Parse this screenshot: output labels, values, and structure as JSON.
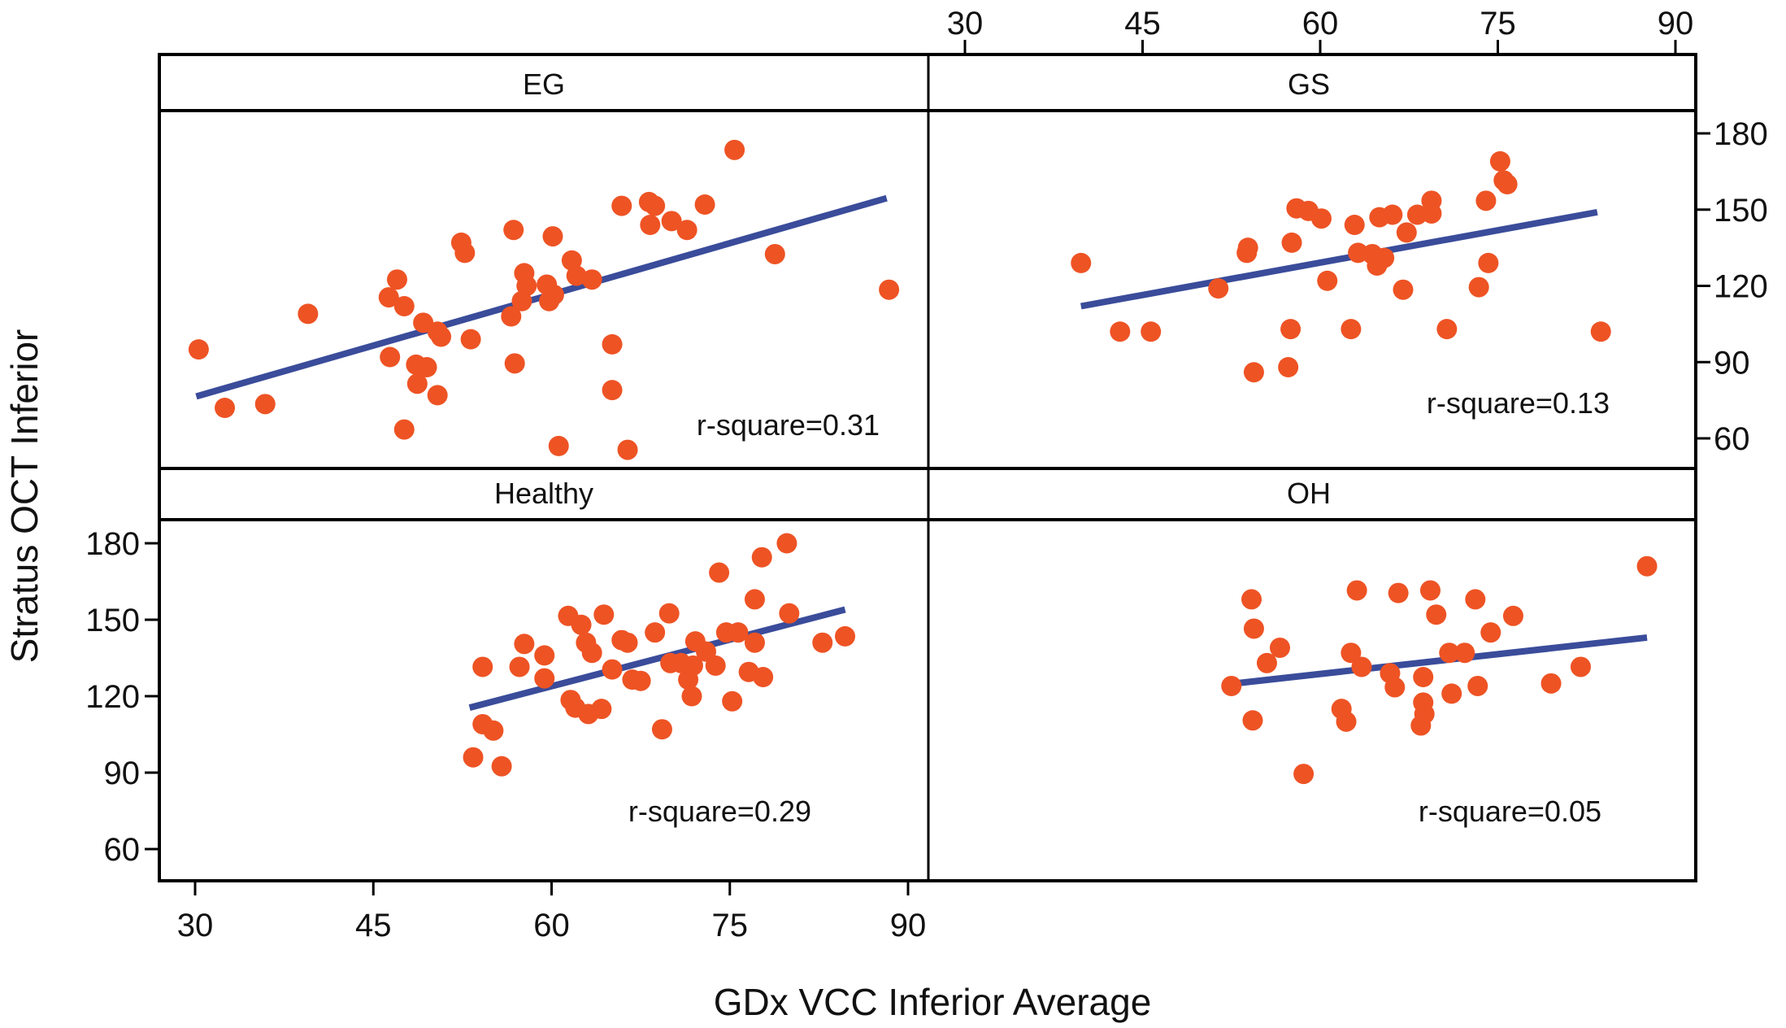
{
  "chart_data": {
    "type": "scatter",
    "layout": "2x2 facet grid",
    "xlabel": "GDx VCC Inferior Average",
    "ylabel": "Stratus OCT Inferior",
    "xlim": [
      30,
      90
    ],
    "ylim": [
      60,
      180
    ],
    "xticks": [
      30,
      45,
      60,
      75,
      90
    ],
    "yticks": [
      60,
      90,
      120,
      150,
      180
    ],
    "grid": false,
    "legend": "none",
    "colors": {
      "points": "#EE5324",
      "fit_line": "#3A4C9A",
      "frame": "#000000"
    },
    "panels": [
      {
        "name": "EG",
        "r_square_label": "r-square=0.31",
        "fit_line": {
          "x": [
            30.1,
            88.2
          ],
          "y": [
            76.5,
            154.5
          ]
        },
        "points": [
          [
            30.3,
            95
          ],
          [
            32.5,
            72
          ],
          [
            35.9,
            73.5
          ],
          [
            39.5,
            109
          ],
          [
            46.3,
            115.5
          ],
          [
            47,
            122.5
          ],
          [
            47.6,
            112
          ],
          [
            46.4,
            92
          ],
          [
            47.6,
            63.5
          ],
          [
            48.7,
            81.5
          ],
          [
            48.6,
            89
          ],
          [
            49.5,
            88
          ],
          [
            49.2,
            105.5
          ],
          [
            50.4,
            102
          ],
          [
            50.7,
            100
          ],
          [
            50.4,
            77
          ],
          [
            52.4,
            137
          ],
          [
            52.7,
            133
          ],
          [
            53.2,
            99
          ],
          [
            56.8,
            142
          ],
          [
            56.6,
            108
          ],
          [
            56.9,
            89.5
          ],
          [
            57.7,
            125
          ],
          [
            57.9,
            120
          ],
          [
            57.5,
            114
          ],
          [
            60.1,
            139.5
          ],
          [
            59.6,
            120.5
          ],
          [
            60.2,
            116.5
          ],
          [
            59.8,
            114
          ],
          [
            60.6,
            57
          ],
          [
            61.7,
            130
          ],
          [
            62.1,
            124
          ],
          [
            63.4,
            122.5
          ],
          [
            65.1,
            97
          ],
          [
            65.1,
            79
          ],
          [
            65.9,
            151.5
          ],
          [
            66.4,
            55.5
          ],
          [
            68.2,
            153
          ],
          [
            68.7,
            151.5
          ],
          [
            68.3,
            144
          ],
          [
            70.1,
            145.5
          ],
          [
            71.4,
            142
          ],
          [
            72.9,
            152
          ],
          [
            75.4,
            173.5
          ],
          [
            78.8,
            132.5
          ],
          [
            88.4,
            118.5
          ]
        ]
      },
      {
        "name": "GS",
        "r_square_label": "r-square=0.13",
        "fit_line": {
          "x": [
            39.8,
            83.4
          ],
          "y": [
            112,
            149
          ]
        },
        "points": [
          [
            39.8,
            129
          ],
          [
            43.1,
            102
          ],
          [
            45.7,
            102
          ],
          [
            51.4,
            119
          ],
          [
            53.8,
            133
          ],
          [
            53.9,
            135
          ],
          [
            54.4,
            86
          ],
          [
            57.3,
            88
          ],
          [
            57.6,
            137
          ],
          [
            57.5,
            103
          ],
          [
            58.0,
            150.5
          ],
          [
            59.0,
            149.5
          ],
          [
            60.1,
            146.5
          ],
          [
            60.6,
            122
          ],
          [
            62.9,
            144
          ],
          [
            62.6,
            103
          ],
          [
            63.2,
            133
          ],
          [
            64.4,
            132.5
          ],
          [
            64.8,
            128
          ],
          [
            65.4,
            131
          ],
          [
            65.0,
            147
          ],
          [
            66.1,
            148
          ],
          [
            67.0,
            118.5
          ],
          [
            67.3,
            141
          ],
          [
            68.2,
            148
          ],
          [
            69.4,
            153.5
          ],
          [
            69.4,
            148.5
          ],
          [
            70.7,
            103
          ],
          [
            73.4,
            119.5
          ],
          [
            74.2,
            129
          ],
          [
            74.0,
            153.5
          ],
          [
            75.2,
            169
          ],
          [
            75.5,
            161.5
          ],
          [
            75.8,
            160
          ],
          [
            83.7,
            102
          ]
        ]
      },
      {
        "name": "Healthy",
        "r_square_label": "r-square=0.29",
        "fit_line": {
          "x": [
            53.1,
            84.7
          ],
          "y": [
            115.5,
            154
          ]
        },
        "points": [
          [
            54.2,
            131.5
          ],
          [
            54.2,
            109
          ],
          [
            55.1,
            106.5
          ],
          [
            53.4,
            96
          ],
          [
            55.8,
            92.5
          ],
          [
            57.3,
            131.5
          ],
          [
            57.7,
            140.5
          ],
          [
            59.4,
            136
          ],
          [
            59.4,
            127
          ],
          [
            61.4,
            151.5
          ],
          [
            62.5,
            148
          ],
          [
            62.9,
            141
          ],
          [
            63.4,
            137
          ],
          [
            61.6,
            118.5
          ],
          [
            62.0,
            115.5
          ],
          [
            63.1,
            113
          ],
          [
            64.2,
            115
          ],
          [
            64.4,
            152
          ],
          [
            65.1,
            130.5
          ],
          [
            65.9,
            142
          ],
          [
            66.4,
            141
          ],
          [
            66.8,
            126.5
          ],
          [
            67.5,
            126
          ],
          [
            68.7,
            145
          ],
          [
            69.9,
            152.5
          ],
          [
            69.3,
            107
          ],
          [
            70.0,
            133
          ],
          [
            70.9,
            133
          ],
          [
            71.9,
            132
          ],
          [
            71.5,
            126.5
          ],
          [
            71.8,
            120
          ],
          [
            72.1,
            141.5
          ],
          [
            73.0,
            137.5
          ],
          [
            73.8,
            132
          ],
          [
            74.1,
            168.5
          ],
          [
            74.7,
            145
          ],
          [
            75.7,
            145
          ],
          [
            75.2,
            118
          ],
          [
            76.6,
            129.5
          ],
          [
            77.1,
            141
          ],
          [
            77.1,
            158
          ],
          [
            77.8,
            127.5
          ],
          [
            77.7,
            174.5
          ],
          [
            79.8,
            180
          ],
          [
            80.0,
            152.5
          ],
          [
            82.8,
            141
          ],
          [
            84.7,
            143.5
          ]
        ]
      },
      {
        "name": "OH",
        "r_square_label": "r-square=0.05",
        "fit_line": {
          "x": [
            52.8,
            87.6
          ],
          "y": [
            125,
            143
          ]
        },
        "points": [
          [
            52.5,
            124
          ],
          [
            54.2,
            158
          ],
          [
            54.4,
            146.5
          ],
          [
            54.3,
            110.5
          ],
          [
            55.5,
            133
          ],
          [
            56.6,
            139
          ],
          [
            58.6,
            89.5
          ],
          [
            61.8,
            115
          ],
          [
            62.2,
            110
          ],
          [
            62.6,
            137
          ],
          [
            63.5,
            131.5
          ],
          [
            63.1,
            161.5
          ],
          [
            65.9,
            129
          ],
          [
            66.3,
            123.5
          ],
          [
            66.6,
            160.5
          ],
          [
            68.7,
            127.5
          ],
          [
            68.7,
            117.5
          ],
          [
            68.8,
            113
          ],
          [
            68.5,
            108.5
          ],
          [
            69.3,
            161.5
          ],
          [
            69.8,
            152
          ],
          [
            70.9,
            137
          ],
          [
            71.1,
            121
          ],
          [
            72.2,
            137
          ],
          [
            73.1,
            158
          ],
          [
            73.3,
            124
          ],
          [
            74.4,
            145
          ],
          [
            76.3,
            151.5
          ],
          [
            79.5,
            125
          ],
          [
            82.0,
            131.5
          ],
          [
            87.6,
            171
          ]
        ]
      }
    ]
  }
}
